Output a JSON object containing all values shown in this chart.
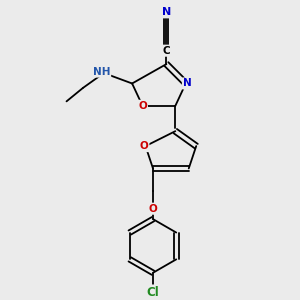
{
  "background_color": "#ebebeb",
  "figsize": [
    3.0,
    3.0
  ],
  "dpi": 100,
  "colors": {
    "C": "#000000",
    "N": "#0000cc",
    "O": "#cc0000",
    "Cl": "#228B22",
    "bond": "#000000",
    "H_label": "#2255aa"
  },
  "font_size": 7.5,
  "bond_width": 1.3
}
